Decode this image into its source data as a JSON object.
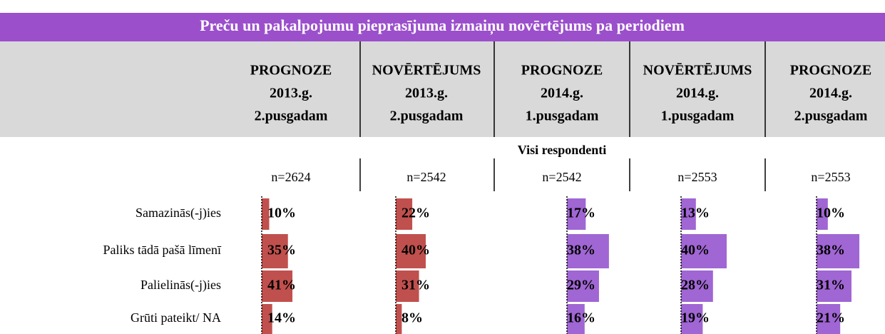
{
  "title": "Preču un pakalpojumu pieprasījuma izmaiņu novērtējums pa periodiem",
  "group_label": "Visi respondenti",
  "rows": [
    "Samazinās(-j)ies",
    "Paliks tādā pašā līmenī",
    "Palielinās(-j)ies",
    "Grūti pateikt/ NA"
  ],
  "columns": [
    {
      "header": [
        "PROGNOZE",
        "2013.g.",
        "2.pusgadam"
      ],
      "n": "n=2624",
      "color": "#c0504d",
      "values": [
        10,
        35,
        41,
        14
      ],
      "value_labels": [
        "10%",
        "35%",
        "41%",
        "14%"
      ]
    },
    {
      "header": [
        "NOVĒRTĒJUMS",
        "2013.g.",
        "2.pusgadam"
      ],
      "n": "n=2542",
      "color": "#c0504d",
      "values": [
        22,
        40,
        31,
        8
      ],
      "value_labels": [
        "22%",
        "40%",
        "31%",
        "8%"
      ]
    },
    {
      "header": [
        "PROGNOZE",
        "2014.g.",
        "1.pusgadam"
      ],
      "n": "n=2542",
      "color": "#a066d3",
      "values": [
        17,
        38,
        29,
        16
      ],
      "value_labels": [
        "17%",
        "38%",
        "29%",
        "16%"
      ]
    },
    {
      "header": [
        "NOVĒRTĒJUMS",
        "2014.g.",
        "1.pusgadam"
      ],
      "n": "n=2553",
      "color": "#a066d3",
      "values": [
        13,
        40,
        28,
        19
      ],
      "value_labels": [
        "13%",
        "40%",
        "28%",
        "19%"
      ]
    },
    {
      "header": [
        "PROGNOZE",
        "2014.g.",
        "2.pusgadam"
      ],
      "n": "n=2553",
      "color": "#a066d3",
      "values": [
        10,
        38,
        31,
        21
      ],
      "value_labels": [
        "10%",
        "38%",
        "31%",
        "21%"
      ]
    }
  ]
}
